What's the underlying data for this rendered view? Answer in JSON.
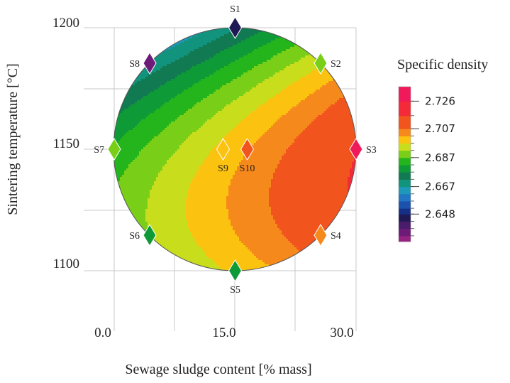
{
  "chart_data": {
    "type": "contour",
    "title": "",
    "xlabel": "Sewage sludge content [% mass]",
    "ylabel": "Sintering temperature [°C]",
    "xlim": [
      0,
      30
    ],
    "ylim": [
      1100,
      1200
    ],
    "x_ticks": [
      "0.0",
      "15.0",
      "30.0"
    ],
    "y_ticks": [
      "1100",
      "1150",
      "1200"
    ],
    "legend_title": "Specific density",
    "legend_ticks": [
      "2.726",
      "2.707",
      "2.687",
      "2.667",
      "2.648"
    ],
    "legend_tick_values": [
      2.726,
      2.707,
      2.687,
      2.667,
      2.648
    ],
    "z_range": [
      2.629,
      2.736
    ],
    "levels": [
      {
        "value": 2.736,
        "color": "#f0195a"
      },
      {
        "value": 2.726,
        "color": "#f42a38"
      },
      {
        "value": 2.716,
        "color": "#f2541e"
      },
      {
        "value": 2.707,
        "color": "#f6891b"
      },
      {
        "value": 2.702,
        "color": "#fbc20f"
      },
      {
        "value": 2.697,
        "color": "#c8de1c"
      },
      {
        "value": 2.692,
        "color": "#79cf17"
      },
      {
        "value": 2.687,
        "color": "#24b51c"
      },
      {
        "value": 2.682,
        "color": "#0f9a38"
      },
      {
        "value": 2.677,
        "color": "#117a52"
      },
      {
        "value": 2.672,
        "color": "#12937e"
      },
      {
        "value": 2.667,
        "color": "#1d98b8"
      },
      {
        "value": 2.662,
        "color": "#2275c2"
      },
      {
        "value": 2.657,
        "color": "#1c52ae"
      },
      {
        "value": 2.652,
        "color": "#152f86"
      },
      {
        "value": 2.648,
        "color": "#1f1a55"
      },
      {
        "value": 2.643,
        "color": "#4b1c6b"
      },
      {
        "value": 2.638,
        "color": "#6e1a78"
      },
      {
        "value": 2.633,
        "color": "#962381"
      }
    ],
    "points": [
      {
        "label": "S1",
        "x": 15.0,
        "y": 1200.0,
        "density": 2.648
      },
      {
        "label": "S2",
        "x": 25.6,
        "y": 1185.4,
        "density": 2.69
      },
      {
        "label": "S3",
        "x": 30.0,
        "y": 1150.0,
        "density": 2.73
      },
      {
        "label": "S4",
        "x": 25.6,
        "y": 1114.6,
        "density": 2.705
      },
      {
        "label": "S5",
        "x": 15.0,
        "y": 1100.0,
        "density": 2.68
      },
      {
        "label": "S6",
        "x": 4.4,
        "y": 1114.6,
        "density": 2.678
      },
      {
        "label": "S7",
        "x": 0.0,
        "y": 1150.0,
        "density": 2.688
      },
      {
        "label": "S8",
        "x": 4.4,
        "y": 1185.4,
        "density": 2.638
      },
      {
        "label": "S9",
        "x": 13.5,
        "y": 1150.0,
        "density": 2.702
      },
      {
        "label": "S10",
        "x": 16.5,
        "y": 1150.0,
        "density": 2.716
      }
    ]
  }
}
